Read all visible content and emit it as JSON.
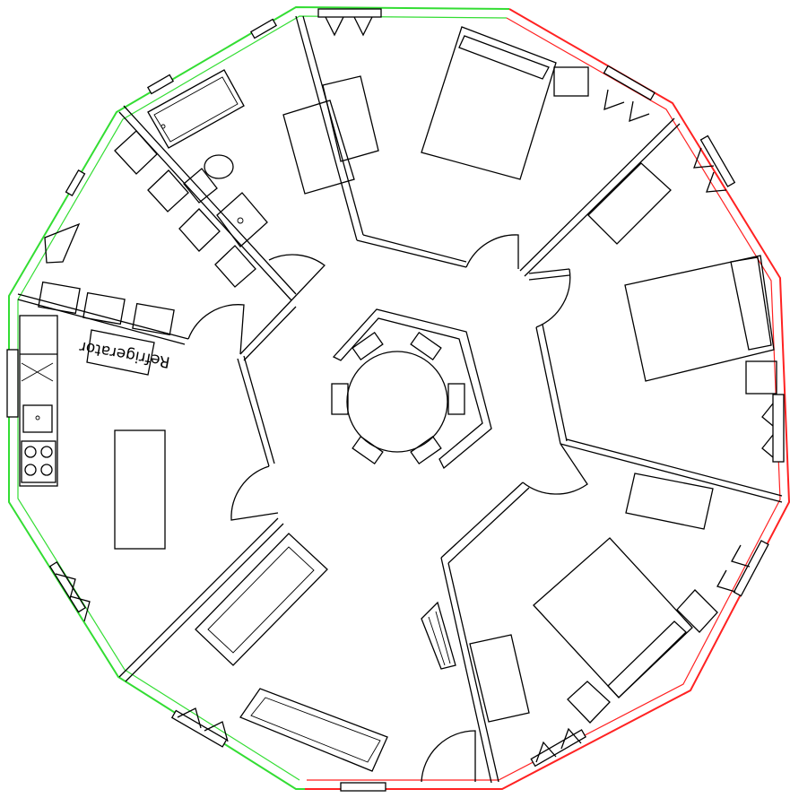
{
  "plan": {
    "labels": {
      "refrigerator": "Refrigerator"
    },
    "colors": {
      "wall_line": "#000000",
      "outer_wall_green": "#33dd33",
      "outer_wall_red": "#ff2222",
      "background": "#ffffff"
    }
  }
}
